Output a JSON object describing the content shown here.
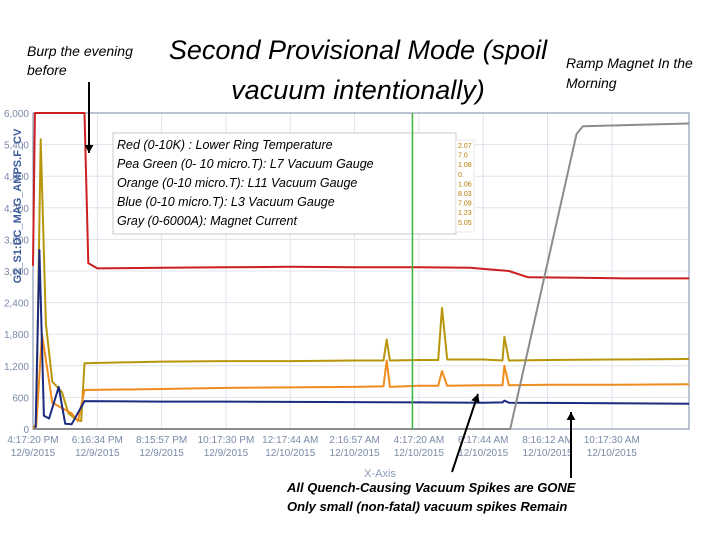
{
  "annotations": {
    "burp": "Burp the evening before",
    "title": "Second Provisional Mode (spoil vacuum intentionally)",
    "ramp": "Ramp Magnet In the Morning",
    "bottom_line1": "All Quench-Causing Vacuum Spikes are GONE",
    "bottom_line2": "Only small (non-fatal) vacuum spikes Remain"
  },
  "legend": [
    "Red (0-10K) :  Lower Ring Temperature",
    "Pea Green (0- 10 micro.T):  L7 Vacuum Gauge",
    "Orange (0-10 micro.T):  L11 Vacuum Gauge",
    "Blue (0-10 micro.T):  L3 Vacuum Gauge",
    "Gray (0-6000A):  Magnet Current"
  ],
  "colors": {
    "red": "#cc1f1f",
    "pea_green": "#b8960c",
    "orange": "#f08c1e",
    "blue": "#1c2a80",
    "gray": "#8c8c8c",
    "cursor": "#3cb43c",
    "axis_label": "#3a5a9a"
  },
  "chart_data": {
    "type": "line",
    "ylabel": "G2_S1:DC_MAG_AMPS.F_CV",
    "xlabel": "X-Axis",
    "ylim": [
      0,
      6000
    ],
    "xlim": [
      0,
      10.2
    ],
    "yticks": [
      "0",
      "600",
      "1,200",
      "1,800",
      "2,400",
      "3,000",
      "3,600",
      "4,200",
      "4,800",
      "5,400",
      "6,000"
    ],
    "xticks": [
      {
        "x": 0,
        "time": "4:17:20 PM",
        "date": "12/9/2015"
      },
      {
        "x": 1,
        "time": "6:16:34 PM",
        "date": "12/9/2015"
      },
      {
        "x": 2,
        "time": "8:15:57 PM",
        "date": "12/9/2015"
      },
      {
        "x": 3,
        "time": "10:17:30 PM",
        "date": "12/9/2015"
      },
      {
        "x": 4,
        "time": "12:17:44 AM",
        "date": "12/10/2015"
      },
      {
        "x": 5,
        "time": "2:16:57 AM",
        "date": "12/10/2015"
      },
      {
        "x": 6,
        "time": "4:17:20 AM",
        "date": "12/10/2015"
      },
      {
        "x": 7,
        "time": "6:17:44 AM",
        "date": "12/10/2015"
      },
      {
        "x": 8,
        "time": "8:16:12 AM",
        "date": "12/10/2015"
      },
      {
        "x": 9,
        "time": "10:17:30 AM",
        "date": "12/10/2015"
      }
    ],
    "cursor_x": 5.9,
    "readouts": [
      "2.07",
      "7.0",
      "1.08",
      "0.",
      "1.06",
      "8.03",
      "7.09",
      "1.23",
      "5.05"
    ],
    "series": [
      {
        "name": "Lower Ring Temperature",
        "color_key": "red",
        "points": [
          [
            0,
            3100
          ],
          [
            0.03,
            6000
          ],
          [
            0.8,
            6000
          ],
          [
            0.86,
            3150
          ],
          [
            1,
            3050
          ],
          [
            2,
            3060
          ],
          [
            3,
            3070
          ],
          [
            4,
            3080
          ],
          [
            5,
            3070
          ],
          [
            6,
            3070
          ],
          [
            6.8,
            3060
          ],
          [
            7,
            3040
          ],
          [
            7.4,
            3000
          ],
          [
            7.7,
            2880
          ],
          [
            8.5,
            2870
          ],
          [
            9.2,
            2860
          ],
          [
            10.2,
            2860
          ]
        ]
      },
      {
        "name": "L7 Vacuum Gauge",
        "color_key": "pea_green",
        "points": [
          [
            0,
            0
          ],
          [
            0.05,
            100
          ],
          [
            0.12,
            5500
          ],
          [
            0.2,
            2000
          ],
          [
            0.3,
            900
          ],
          [
            0.45,
            700
          ],
          [
            0.55,
            300
          ],
          [
            0.65,
            200
          ],
          [
            0.75,
            150
          ],
          [
            0.8,
            1250
          ],
          [
            2,
            1280
          ],
          [
            3,
            1290
          ],
          [
            4,
            1290
          ],
          [
            5,
            1300
          ],
          [
            5.45,
            1300
          ],
          [
            5.5,
            1700
          ],
          [
            5.55,
            1300
          ],
          [
            6,
            1310
          ],
          [
            6.3,
            1310
          ],
          [
            6.36,
            2300
          ],
          [
            6.44,
            1320
          ],
          [
            7,
            1320
          ],
          [
            7.3,
            1300
          ],
          [
            7.33,
            1750
          ],
          [
            7.4,
            1300
          ],
          [
            8,
            1310
          ],
          [
            9,
            1320
          ],
          [
            10.2,
            1330
          ]
        ]
      },
      {
        "name": "L11 Vacuum Gauge",
        "color_key": "orange",
        "points": [
          [
            0,
            0
          ],
          [
            0.05,
            50
          ],
          [
            0.14,
            1800
          ],
          [
            0.3,
            500
          ],
          [
            0.6,
            300
          ],
          [
            0.7,
            150
          ],
          [
            0.8,
            740
          ],
          [
            2,
            760
          ],
          [
            3,
            780
          ],
          [
            4,
            790
          ],
          [
            5,
            800
          ],
          [
            5.45,
            810
          ],
          [
            5.5,
            1300
          ],
          [
            5.55,
            800
          ],
          [
            6,
            820
          ],
          [
            6.3,
            820
          ],
          [
            6.36,
            1100
          ],
          [
            6.44,
            820
          ],
          [
            7,
            830
          ],
          [
            7.3,
            830
          ],
          [
            7.33,
            1200
          ],
          [
            7.4,
            830
          ],
          [
            8,
            840
          ],
          [
            9,
            840
          ],
          [
            10.2,
            850
          ]
        ]
      },
      {
        "name": "L3 Vacuum Gauge",
        "color_key": "blue",
        "points": [
          [
            0,
            0
          ],
          [
            0.04,
            0
          ],
          [
            0.1,
            3400
          ],
          [
            0.17,
            250
          ],
          [
            0.25,
            200
          ],
          [
            0.4,
            800
          ],
          [
            0.5,
            100
          ],
          [
            0.6,
            90
          ],
          [
            0.8,
            530
          ],
          [
            2,
            520
          ],
          [
            3,
            520
          ],
          [
            4,
            515
          ],
          [
            5,
            510
          ],
          [
            6,
            505
          ],
          [
            7,
            500
          ],
          [
            7.3,
            505
          ],
          [
            7.33,
            540
          ],
          [
            7.4,
            500
          ],
          [
            8,
            495
          ],
          [
            9,
            490
          ],
          [
            10.2,
            480
          ]
        ]
      },
      {
        "name": "Magnet Current",
        "color_key": "gray",
        "points": [
          [
            0,
            0
          ],
          [
            7.42,
            0
          ],
          [
            8.45,
            5600
          ],
          [
            8.55,
            5750
          ],
          [
            10.2,
            5800
          ]
        ]
      }
    ]
  }
}
